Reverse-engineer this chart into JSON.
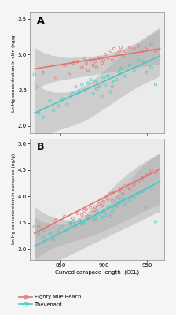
{
  "panel_A": {
    "pink_x": [
      830,
      845,
      855,
      860,
      865,
      870,
      875,
      878,
      880,
      882,
      885,
      888,
      890,
      892,
      895,
      898,
      900,
      902,
      905,
      908,
      910,
      912,
      915,
      918,
      920,
      922,
      925,
      930,
      935,
      940,
      945,
      950,
      955,
      960
    ],
    "pink_y": [
      2.75,
      2.68,
      2.85,
      2.72,
      2.88,
      2.9,
      2.82,
      2.95,
      2.88,
      2.78,
      2.92,
      2.85,
      2.9,
      2.82,
      2.95,
      2.88,
      2.92,
      3.0,
      2.95,
      3.05,
      2.92,
      3.08,
      3.0,
      3.05,
      3.1,
      2.98,
      3.05,
      3.1,
      3.08,
      3.12,
      3.05,
      3.1,
      3.15,
      3.05
    ],
    "cyan_x": [
      820,
      825,
      830,
      838,
      842,
      848,
      852,
      858,
      862,
      865,
      868,
      872,
      875,
      878,
      882,
      885,
      888,
      890,
      892,
      895,
      898,
      900,
      902,
      905,
      908,
      910,
      912,
      915,
      918,
      920,
      925,
      930,
      935,
      940,
      945,
      950,
      955,
      960
    ],
    "cyan_y": [
      2.72,
      2.18,
      2.12,
      2.35,
      2.22,
      2.28,
      2.38,
      2.3,
      2.42,
      2.45,
      2.55,
      2.48,
      2.58,
      2.5,
      2.6,
      2.65,
      2.45,
      2.62,
      2.52,
      2.55,
      2.42,
      2.68,
      2.58,
      2.7,
      2.48,
      2.55,
      2.62,
      2.65,
      2.75,
      2.8,
      2.7,
      2.85,
      2.78,
      2.92,
      2.9,
      2.75,
      2.82,
      2.58
    ],
    "pink_line_x": [
      820,
      965
    ],
    "pink_line_y": [
      2.8,
      3.08
    ],
    "cyan_line_x": [
      820,
      965
    ],
    "cyan_line_y": [
      2.18,
      2.98
    ],
    "pink_ci_x": [
      820,
      825,
      830,
      835,
      840,
      845,
      850,
      855,
      860,
      865,
      870,
      875,
      880,
      885,
      890,
      895,
      900,
      905,
      910,
      915,
      920,
      925,
      930,
      935,
      940,
      945,
      950,
      955,
      960,
      965
    ],
    "pink_ci_upper": [
      3.1,
      3.06,
      3.03,
      3.01,
      2.99,
      2.98,
      2.97,
      2.96,
      2.96,
      2.96,
      2.96,
      2.96,
      2.97,
      2.97,
      2.98,
      2.99,
      3.0,
      3.01,
      3.03,
      3.05,
      3.07,
      3.09,
      3.12,
      3.15,
      3.18,
      3.22,
      3.26,
      3.3,
      3.34,
      3.38
    ],
    "pink_ci_lower": [
      2.5,
      2.54,
      2.57,
      2.59,
      2.61,
      2.63,
      2.64,
      2.65,
      2.66,
      2.67,
      2.68,
      2.69,
      2.7,
      2.71,
      2.72,
      2.73,
      2.74,
      2.75,
      2.76,
      2.77,
      2.78,
      2.79,
      2.8,
      2.81,
      2.82,
      2.83,
      2.84,
      2.85,
      2.86,
      2.87
    ],
    "cyan_ci_x": [
      820,
      825,
      830,
      835,
      840,
      845,
      850,
      855,
      860,
      865,
      870,
      875,
      880,
      885,
      890,
      895,
      900,
      905,
      910,
      915,
      920,
      925,
      930,
      935,
      940,
      945,
      950,
      955,
      960,
      965
    ],
    "cyan_ci_upper": [
      2.6,
      2.56,
      2.52,
      2.5,
      2.48,
      2.47,
      2.47,
      2.47,
      2.48,
      2.5,
      2.52,
      2.55,
      2.58,
      2.62,
      2.67,
      2.72,
      2.77,
      2.82,
      2.88,
      2.93,
      2.98,
      3.03,
      3.08,
      3.12,
      3.16,
      3.2,
      3.24,
      3.28,
      3.32,
      3.36
    ],
    "cyan_ci_lower": [
      1.76,
      1.8,
      1.84,
      1.87,
      1.9,
      1.93,
      1.95,
      1.97,
      1.99,
      2.01,
      2.03,
      2.06,
      2.08,
      2.12,
      2.16,
      2.2,
      2.24,
      2.28,
      2.32,
      2.36,
      2.4,
      2.44,
      2.48,
      2.52,
      2.55,
      2.58,
      2.61,
      2.64,
      2.67,
      2.7
    ],
    "ylim": [
      1.9,
      3.6
    ],
    "yticks": [
      2.0,
      2.5,
      3.0,
      3.5
    ],
    "ylabel": "Ln Hg concentration in skin (ng/g)"
  },
  "panel_B": {
    "pink_x": [
      825,
      832,
      845,
      855,
      860,
      865,
      870,
      875,
      878,
      880,
      882,
      885,
      888,
      890,
      892,
      895,
      898,
      900,
      902,
      905,
      908,
      910,
      912,
      915,
      918,
      920,
      922,
      925,
      930,
      935,
      940,
      945,
      950,
      955,
      960
    ],
    "pink_y": [
      3.42,
      3.35,
      3.55,
      3.62,
      3.5,
      3.58,
      3.68,
      3.65,
      3.72,
      3.75,
      3.62,
      3.78,
      3.7,
      3.8,
      3.72,
      3.85,
      3.82,
      3.9,
      4.0,
      3.95,
      4.05,
      3.92,
      4.08,
      4.0,
      4.1,
      4.15,
      4.05,
      4.2,
      4.15,
      4.22,
      4.28,
      4.35,
      4.4,
      4.5,
      4.45
    ],
    "cyan_x": [
      820,
      825,
      830,
      838,
      842,
      848,
      852,
      858,
      862,
      865,
      868,
      872,
      875,
      878,
      882,
      885,
      888,
      890,
      892,
      895,
      898,
      900,
      902,
      905,
      908,
      910,
      912,
      915,
      918,
      920,
      925,
      930,
      935,
      940,
      945,
      950,
      955,
      960
    ],
    "cyan_y": [
      3.42,
      3.28,
      3.22,
      3.3,
      3.18,
      3.35,
      3.42,
      3.35,
      3.48,
      3.52,
      3.42,
      3.55,
      3.48,
      3.52,
      3.58,
      3.62,
      3.55,
      3.62,
      3.55,
      3.68,
      3.6,
      3.72,
      3.65,
      3.78,
      3.62,
      3.7,
      3.78,
      3.82,
      3.88,
      3.95,
      3.85,
      3.92,
      3.98,
      4.05,
      4.1,
      3.78,
      4.15,
      3.52
    ],
    "pink_line_x": [
      820,
      965
    ],
    "pink_line_y": [
      3.3,
      4.52
    ],
    "cyan_line_x": [
      820,
      965
    ],
    "cyan_line_y": [
      3.05,
      4.28
    ],
    "pink_ci_x": [
      820,
      825,
      830,
      835,
      840,
      845,
      850,
      855,
      860,
      865,
      870,
      875,
      880,
      885,
      890,
      895,
      900,
      905,
      910,
      915,
      920,
      925,
      930,
      935,
      940,
      945,
      950,
      955,
      960,
      965
    ],
    "pink_ci_upper": [
      3.8,
      3.74,
      3.69,
      3.65,
      3.62,
      3.59,
      3.57,
      3.56,
      3.55,
      3.55,
      3.56,
      3.57,
      3.59,
      3.61,
      3.64,
      3.69,
      3.74,
      3.81,
      3.9,
      4.0,
      4.1,
      4.2,
      4.3,
      4.4,
      4.5,
      4.58,
      4.65,
      4.72,
      4.78,
      4.82
    ],
    "pink_ci_lower": [
      2.8,
      2.86,
      2.91,
      2.96,
      3.0,
      3.04,
      3.07,
      3.1,
      3.13,
      3.15,
      3.17,
      3.2,
      3.22,
      3.25,
      3.28,
      3.31,
      3.34,
      3.38,
      3.42,
      3.46,
      3.5,
      3.54,
      3.58,
      3.62,
      3.66,
      3.7,
      3.74,
      3.78,
      3.82,
      3.86
    ],
    "cyan_ci_x": [
      820,
      825,
      830,
      835,
      840,
      845,
      850,
      855,
      860,
      865,
      870,
      875,
      880,
      885,
      890,
      895,
      900,
      905,
      910,
      915,
      920,
      925,
      930,
      935,
      940,
      945,
      950,
      955,
      960,
      965
    ],
    "cyan_ci_upper": [
      3.6,
      3.56,
      3.52,
      3.5,
      3.48,
      3.47,
      3.47,
      3.48,
      3.5,
      3.53,
      3.57,
      3.62,
      3.68,
      3.75,
      3.83,
      3.92,
      4.0,
      4.08,
      4.16,
      4.24,
      4.32,
      4.39,
      4.46,
      4.52,
      4.58,
      4.63,
      4.68,
      4.73,
      4.77,
      4.8
    ],
    "cyan_ci_lower": [
      2.5,
      2.56,
      2.62,
      2.68,
      2.72,
      2.76,
      2.8,
      2.84,
      2.88,
      2.92,
      2.96,
      3.0,
      3.04,
      3.08,
      3.12,
      3.16,
      3.2,
      3.24,
      3.28,
      3.32,
      3.36,
      3.4,
      3.44,
      3.48,
      3.52,
      3.56,
      3.6,
      3.64,
      3.68,
      3.7
    ],
    "ylim": [
      2.8,
      5.1
    ],
    "yticks": [
      3.0,
      3.5,
      4.0,
      4.5,
      5.0
    ],
    "ylabel": "Ln Hg concentration in carapace (ng/g)"
  },
  "xlim": [
    815,
    970
  ],
  "xticks": [
    850,
    900,
    950
  ],
  "xlabel": "Curved carapace length  (CCL)",
  "pink_color": "#E87070",
  "cyan_color": "#45C8C0",
  "ci_gray": "#AAAAAA",
  "ci_alpha": 0.45,
  "bg_color": "#EBEBEB",
  "fig_color": "#F5F5F5",
  "panel_labels": [
    "A",
    "B"
  ],
  "legend_pink": "Eighty Mile Beach",
  "legend_cyan": "Thevenard",
  "point_size": 6,
  "point_alpha": 0.85,
  "line_width": 1.2
}
